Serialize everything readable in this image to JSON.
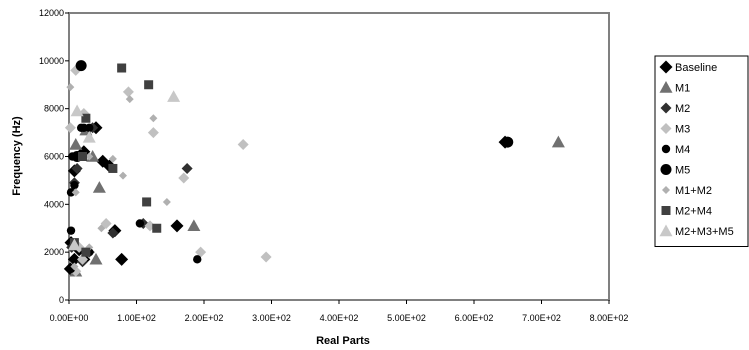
{
  "chart_data": {
    "type": "scatter",
    "title": "",
    "xlabel": "Real Parts",
    "ylabel": "Frequency (Hz)",
    "xlim": [
      0,
      800
    ],
    "ylim": [
      0,
      12000
    ],
    "x_ticks": [
      "0.00E+00",
      "1.00E+02",
      "2.00E+02",
      "3.00E+02",
      "4.00E+02",
      "5.00E+02",
      "6.00E+02",
      "7.00E+02",
      "8.00E+02"
    ],
    "y_ticks": [
      "0",
      "2000",
      "4000",
      "6000",
      "8000",
      "10000",
      "12000"
    ],
    "grid": false,
    "legend_position": "right",
    "series": [
      {
        "name": "Baseline",
        "marker": "diamond-large",
        "color": "#000000",
        "points": [
          [
            2,
            1300
          ],
          [
            8,
            1700
          ],
          [
            22,
            1700
          ],
          [
            15,
            2100
          ],
          [
            3,
            2400
          ],
          [
            68,
            2900
          ],
          [
            78,
            1700
          ],
          [
            160,
            3100
          ],
          [
            8,
            5400
          ],
          [
            50,
            5800
          ],
          [
            60,
            5600
          ],
          [
            22,
            6200
          ],
          [
            40,
            7200
          ],
          [
            646,
            6600
          ]
        ]
      },
      {
        "name": "M1",
        "marker": "triangle",
        "color": "#707070",
        "points": [
          [
            10,
            1200
          ],
          [
            40,
            1700
          ],
          [
            185,
            3100
          ],
          [
            45,
            4700
          ],
          [
            10,
            6500
          ],
          [
            35,
            6000
          ],
          [
            25,
            7100
          ],
          [
            725,
            6600
          ]
        ]
      },
      {
        "name": "M2",
        "marker": "diamond",
        "color": "#303030",
        "points": [
          [
            20,
            1600
          ],
          [
            30,
            2000
          ],
          [
            4,
            2200
          ],
          [
            110,
            3200
          ],
          [
            65,
            2800
          ],
          [
            12,
            5500
          ],
          [
            175,
            5500
          ],
          [
            35,
            7200
          ],
          [
            8,
            4900
          ]
        ]
      },
      {
        "name": "M3",
        "marker": "diamond",
        "color": "#c0c0c0",
        "points": [
          [
            10,
            1200
          ],
          [
            20,
            1700
          ],
          [
            15,
            2200
          ],
          [
            195,
            2000
          ],
          [
            292,
            1800
          ],
          [
            55,
            3200
          ],
          [
            120,
            3100
          ],
          [
            170,
            5100
          ],
          [
            258,
            6500
          ],
          [
            125,
            7000
          ],
          [
            88,
            8700
          ],
          [
            10,
            9600
          ],
          [
            2,
            7200
          ],
          [
            22,
            7800
          ]
        ]
      },
      {
        "name": "M4",
        "marker": "circle",
        "color": "#000000",
        "points": [
          [
            3,
            1300
          ],
          [
            30,
            2000
          ],
          [
            190,
            1700
          ],
          [
            3,
            2900
          ],
          [
            105,
            3200
          ],
          [
            3,
            4500
          ],
          [
            8,
            4800
          ],
          [
            5,
            6000
          ],
          [
            18,
            7200
          ],
          [
            22,
            7200
          ],
          [
            30,
            7200
          ]
        ]
      },
      {
        "name": "M5",
        "marker": "circle-large",
        "color": "#000000",
        "points": [
          [
            18,
            9800
          ],
          [
            12,
            6000
          ],
          [
            650,
            6600
          ]
        ]
      },
      {
        "name": "M1+M2",
        "marker": "diamond-small",
        "color": "#b0b0b0",
        "points": [
          [
            8,
            1400
          ],
          [
            30,
            2200
          ],
          [
            48,
            3000
          ],
          [
            80,
            5200
          ],
          [
            145,
            4100
          ],
          [
            10,
            4500
          ],
          [
            30,
            6000
          ],
          [
            65,
            5900
          ],
          [
            125,
            7600
          ],
          [
            90,
            8400
          ],
          [
            2,
            8900
          ]
        ]
      },
      {
        "name": "M2+M4",
        "marker": "square",
        "color": "#404040",
        "points": [
          [
            8,
            2400
          ],
          [
            25,
            2000
          ],
          [
            115,
            4100
          ],
          [
            130,
            3000
          ],
          [
            65,
            5500
          ],
          [
            20,
            6000
          ],
          [
            25,
            7600
          ],
          [
            118,
            9000
          ],
          [
            78,
            9700
          ]
        ]
      },
      {
        "name": "M2+M3+M5",
        "marker": "triangle",
        "color": "#c8c8c8",
        "points": [
          [
            8,
            2300
          ],
          [
            155,
            8500
          ],
          [
            30,
            6800
          ],
          [
            12,
            7900
          ]
        ]
      }
    ]
  }
}
